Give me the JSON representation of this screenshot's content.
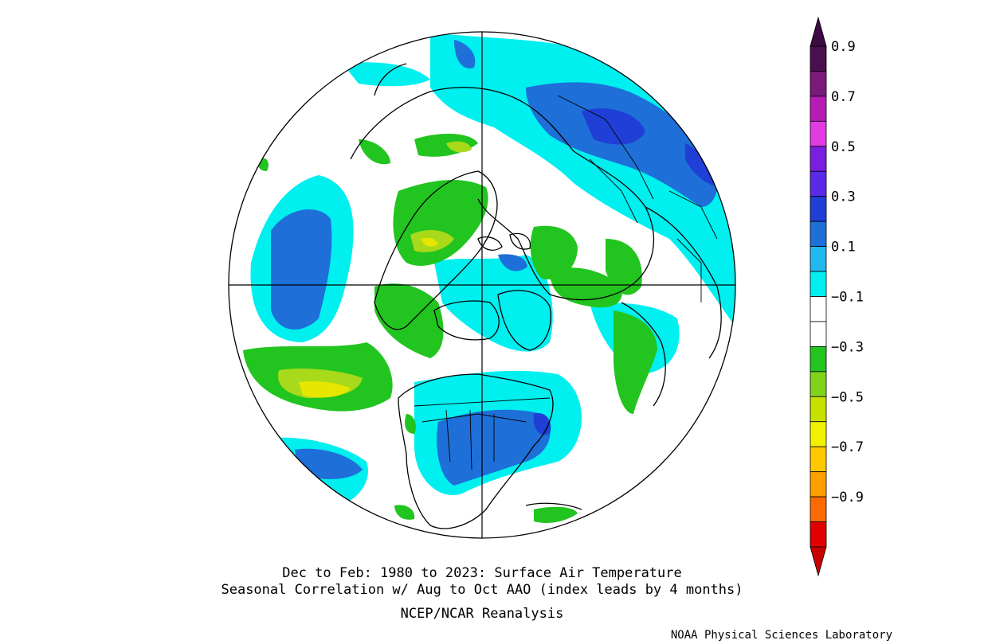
{
  "map": {
    "projection": "north-polar-stereographic",
    "variable": "Surface Air Temperature",
    "field_colors": {
      "land_outline": "#000000",
      "grid_line": "#000000"
    }
  },
  "captions": {
    "line1": "Dec to Feb: 1980 to 2023: Surface Air Temperature",
    "line2": "Seasonal Correlation w/ Aug to Oct AAO (index leads by 4 months)",
    "line3": "NCEP/NCAR Reanalysis",
    "credit": "NOAA Physical Sciences Laboratory"
  },
  "colorbar": {
    "orientation": "vertical",
    "position": "right",
    "levels": [
      -0.9,
      -0.8,
      -0.7,
      -0.6,
      -0.5,
      -0.4,
      -0.3,
      -0.2,
      -0.1,
      0.1,
      0.2,
      0.3,
      0.4,
      0.5,
      0.6,
      0.7,
      0.8,
      0.9
    ],
    "labels": [
      "0.9",
      "0.7",
      "0.5",
      "0.3",
      "0.1",
      "−0.1",
      "−0.3",
      "−0.5",
      "−0.7",
      "−0.9"
    ],
    "colors_top_to_bottom": [
      "#4a0f4e",
      "#7a1b7c",
      "#b61bb6",
      "#e23be2",
      "#7a1fe0",
      "#5a2ae6",
      "#1f3fd6",
      "#1e6fd8",
      "#21b8f0",
      "#00f0f0",
      "#ffffff",
      "#ffffff",
      "#22c41f",
      "#7fd41a",
      "#c8e000",
      "#f2f200",
      "#ffc800",
      "#ff9f00",
      "#ff6a00",
      "#e00000"
    ],
    "max_arrow_color": "#3d0a41",
    "min_arrow_color": "#c80000"
  }
}
